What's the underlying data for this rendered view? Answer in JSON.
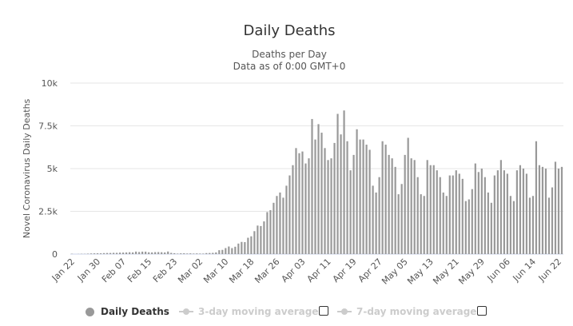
{
  "chart_data": {
    "type": "bar",
    "title": "Daily Deaths",
    "subtitle_lines": [
      "Deaths per Day",
      "Data as of 0:00 GMT+0"
    ],
    "ylabel": "Novel Coronavirus Daily Deaths",
    "xlabel": "",
    "ylim": [
      0,
      10000
    ],
    "y_ticks": [
      {
        "value": 0,
        "label": "0"
      },
      {
        "value": 2500,
        "label": "2.5k"
      },
      {
        "value": 5000,
        "label": "5k"
      },
      {
        "value": 7500,
        "label": "7.5k"
      },
      {
        "value": 10000,
        "label": "10k"
      }
    ],
    "grid": true,
    "color": "#999999",
    "x_start": "Jan 22",
    "x_tick_labels": [
      "Jan 22",
      "Jan 30",
      "Feb 07",
      "Feb 15",
      "Feb 23",
      "Mar 02",
      "Mar 10",
      "Mar 18",
      "Mar 26",
      "Apr 03",
      "Apr 11",
      "Apr 19",
      "Apr 27",
      "May 05",
      "May 13",
      "May 21",
      "May 29",
      "Jun 06",
      "Jun 14",
      "Jun 22"
    ],
    "tick_every": 8,
    "series": [
      {
        "name": "Daily Deaths",
        "values": [
          17,
          0,
          8,
          16,
          14,
          26,
          38,
          43,
          46,
          45,
          57,
          64,
          65,
          73,
          73,
          86,
          89,
          97,
          108,
          97,
          146,
          121,
          143,
          142,
          106,
          98,
          115,
          118,
          109,
          97,
          150,
          71,
          52,
          29,
          44,
          47,
          35,
          42,
          31,
          38,
          31,
          30,
          58,
          64,
          72,
          97,
          227,
          247,
          352,
          444,
          350,
          430,
          615,
          711,
          699,
          956,
          1040,
          1342,
          1667,
          1640,
          1912,
          2457,
          2569,
          3000,
          3400,
          3600,
          3300,
          4000,
          4600,
          5200,
          6200,
          5900,
          6000,
          5300,
          5600,
          7900,
          6700,
          7600,
          7100,
          6200,
          5500,
          5600,
          6500,
          8200,
          7000,
          8400,
          6600,
          4900,
          5800,
          7300,
          6700,
          6700,
          6400,
          6100,
          4000,
          3600,
          4500,
          6600,
          6400,
          5800,
          5600,
          5100,
          3500,
          4100,
          5800,
          6800,
          5600,
          5500,
          4500,
          3500,
          3400,
          5500,
          5200,
          5200,
          4900,
          4500,
          3600,
          3400,
          4600,
          4600,
          4900,
          4700,
          4400,
          3100,
          3200,
          3800,
          5300,
          4800,
          5000,
          4500,
          3600,
          3000,
          4600,
          4900,
          5500,
          4900,
          4700,
          3400,
          3100,
          4900,
          5200,
          5000,
          4700,
          3300,
          3400,
          6600,
          5200,
          5100,
          5000,
          3300,
          3900,
          5400,
          5000,
          5100
        ]
      }
    ]
  },
  "legend": {
    "items": [
      {
        "label": "Daily Deaths",
        "active": true,
        "checkbox": false
      },
      {
        "label": "3-day moving average",
        "active": false,
        "checkbox": true
      },
      {
        "label": "7-day moving average",
        "active": false,
        "checkbox": true
      }
    ]
  },
  "colors": {
    "bar": "#999999",
    "grid": "#e6e6e6",
    "axis": "#ccd6eb",
    "inactive": "#cccccc"
  }
}
